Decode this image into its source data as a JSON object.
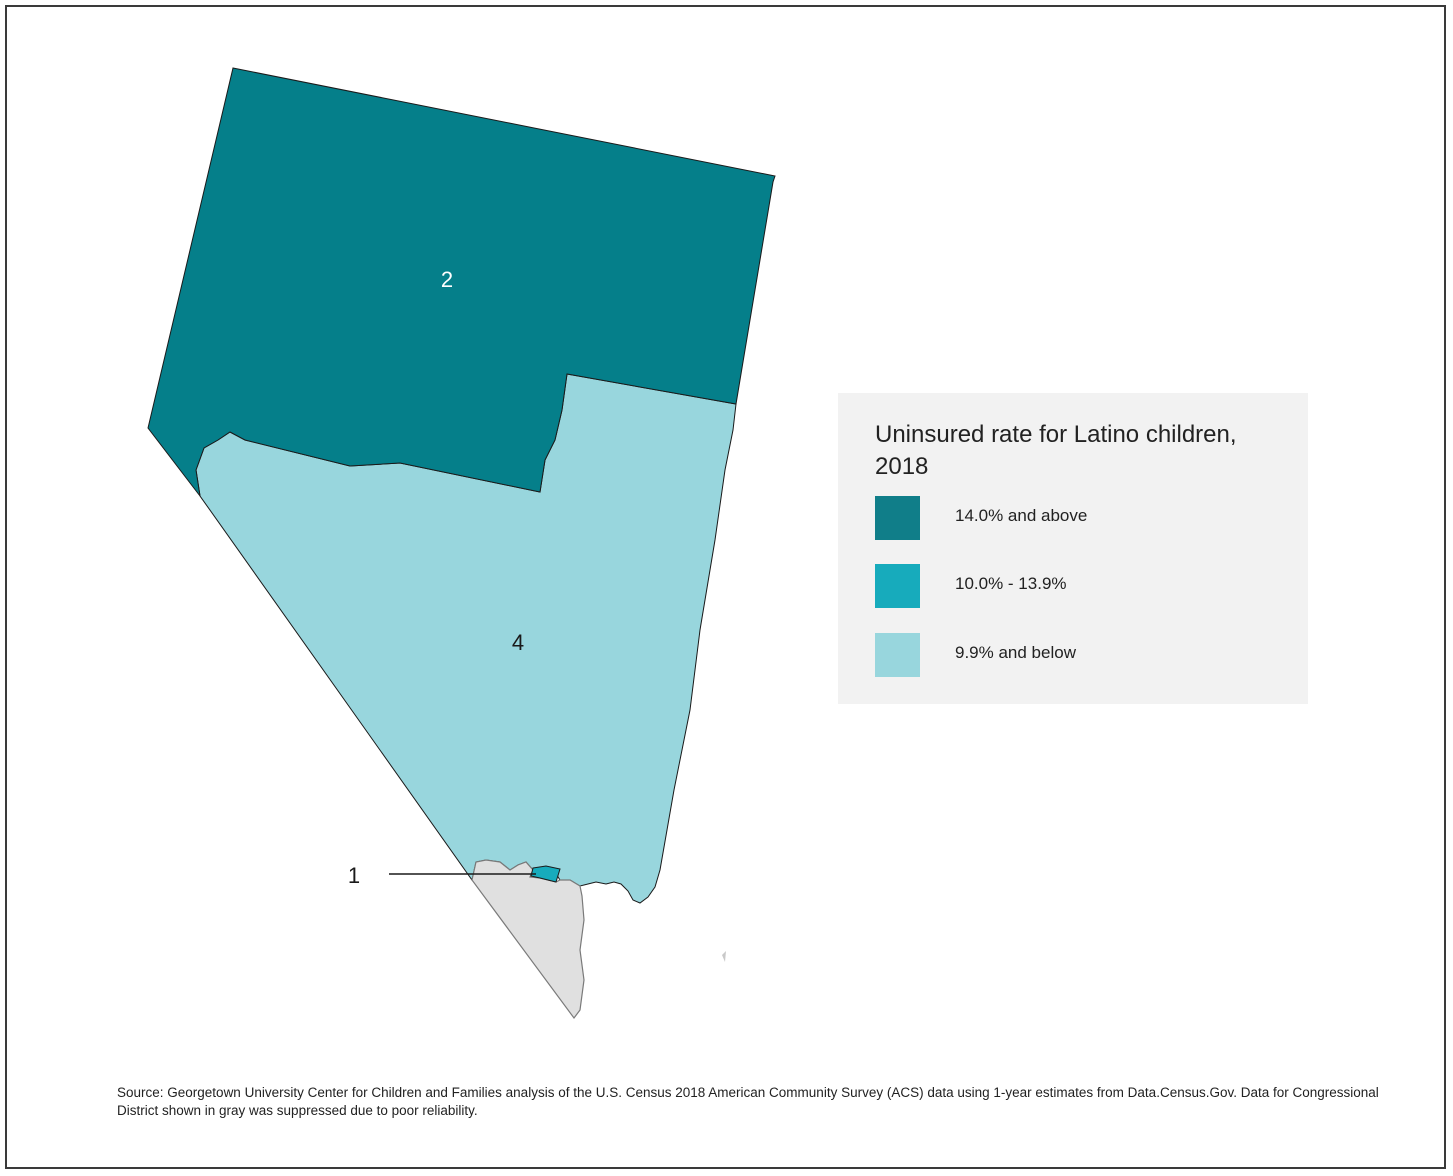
{
  "colors": {
    "high": "#057f8a",
    "mid": "#17abbc",
    "low": "#98d6dd",
    "suppressed": "#e0e0e0",
    "legend_bg": "#f2f2f2",
    "outline": "#1a1a1a"
  },
  "map": {
    "districts": [
      {
        "id": "2",
        "label": "2",
        "category": "14.0% and above"
      },
      {
        "id": "4",
        "label": "4",
        "category": "9.9% and below"
      },
      {
        "id": "1",
        "label": "1",
        "category": "10.0% - 13.9%"
      },
      {
        "id": "3",
        "label": "",
        "category": "suppressed"
      }
    ]
  },
  "legend": {
    "title": "Uninsured rate for Latino children, 2018",
    "items": [
      {
        "label": "14.0% and above",
        "color": "#107e89"
      },
      {
        "label": "10.0% - 13.9%",
        "color": "#17abbc"
      },
      {
        "label": "9.9% and below",
        "color": "#98d6dd"
      }
    ]
  },
  "source": "Source: Georgetown University Center for Children and Families analysis of the U.S. Census 2018 American Community Survey (ACS) data using 1-year estimates from Data.Census.Gov. Data for Congressional District shown in gray was suppressed due to poor reliability."
}
